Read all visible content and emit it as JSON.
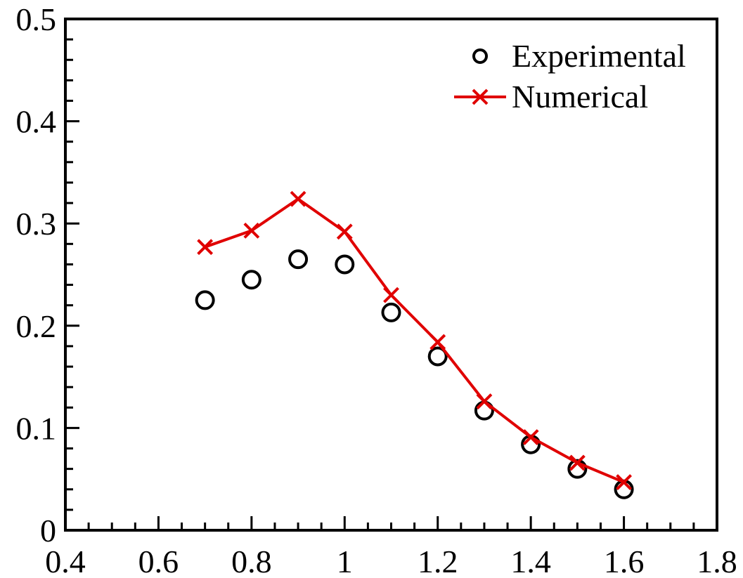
{
  "chart_data": {
    "type": "line",
    "title": "",
    "xlabel": "",
    "ylabel": "",
    "xlim": [
      0.4,
      1.8
    ],
    "ylim": [
      0,
      0.5
    ],
    "x_ticks": [
      "0.4",
      "0.6",
      "0.8",
      "1",
      "1.2",
      "1.4",
      "1.6",
      "1.8"
    ],
    "y_ticks": [
      "0",
      "0.1",
      "0.2",
      "0.3",
      "0.4",
      "0.5"
    ],
    "grid": false,
    "legend_position": "top-right",
    "series": [
      {
        "name": "Experimental",
        "style": "markers",
        "marker": "circle",
        "color": "#000000",
        "x": [
          0.7,
          0.8,
          0.9,
          1.0,
          1.1,
          1.2,
          1.3,
          1.4,
          1.5,
          1.6
        ],
        "y": [
          0.225,
          0.245,
          0.265,
          0.26,
          0.213,
          0.17,
          0.117,
          0.084,
          0.06,
          0.04
        ]
      },
      {
        "name": "Numerical",
        "style": "line+markers",
        "marker": "x",
        "color": "#e00000",
        "x": [
          0.7,
          0.8,
          0.9,
          1.0,
          1.1,
          1.2,
          1.3,
          1.4,
          1.5,
          1.6
        ],
        "y": [
          0.277,
          0.293,
          0.324,
          0.292,
          0.23,
          0.184,
          0.126,
          0.091,
          0.066,
          0.047
        ]
      }
    ]
  }
}
